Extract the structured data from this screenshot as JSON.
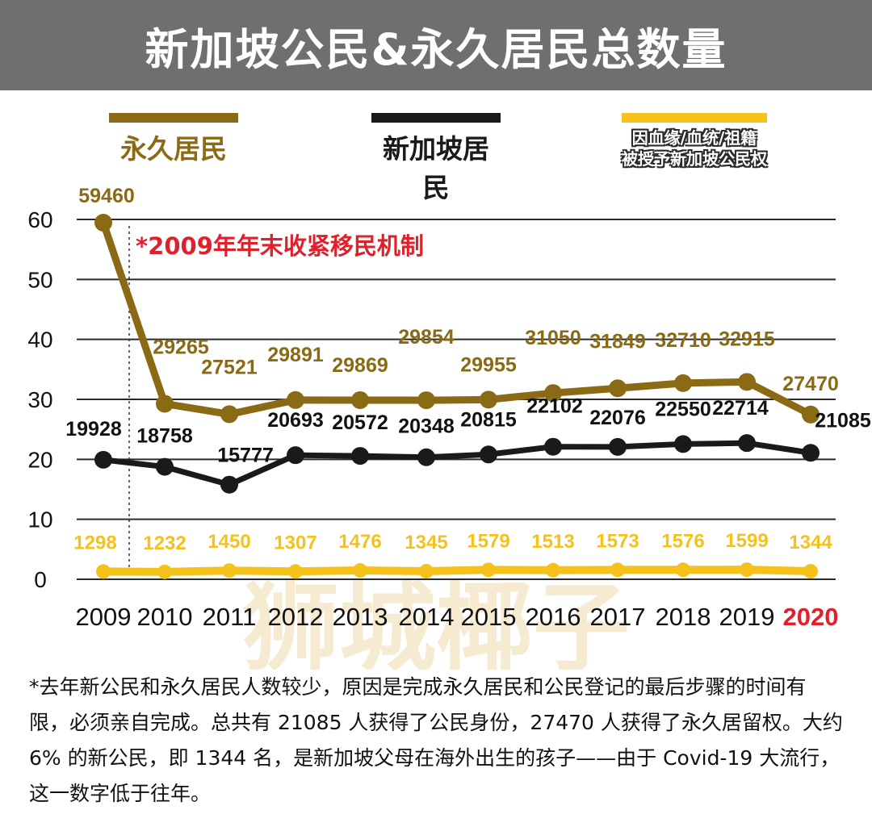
{
  "title": "新加坡公民&永久居民总数量",
  "legend": [
    {
      "label": "永久居民",
      "color": "#8a6a14"
    },
    {
      "label": "新加坡居民",
      "color": "#1a1a1a"
    },
    {
      "label_lines": [
        "因血缘/血统/祖籍",
        "被授予新加坡公民权"
      ],
      "color": "#f5c21b"
    }
  ],
  "annotation": "*2009年年末收紧移民机制",
  "footnote": "*去年新公民和永久居民人数较少，原因是完成永久居民和公民登记的最后步骤的时间有限，必须亲自完成。总共有 21085 人获得了公民身份，27470 人获得了永久居留权。大约 6% 的新公民，即 1344 名，是新加坡父母在海外出生的孩子——由于 Covid-19 大流行，这一数字低于往年。",
  "watermark": "狮城椰子",
  "colors": {
    "highlight_year": "#e0202a",
    "annotation": "#e0202a"
  },
  "chart_data": {
    "type": "line",
    "x": [
      "2009",
      "2010",
      "2011",
      "2012",
      "2013",
      "2014",
      "2015",
      "2016",
      "2017",
      "2018",
      "2019",
      "2020"
    ],
    "y_ticks": [
      "0",
      "10",
      "20",
      "30",
      "40",
      "50",
      "60"
    ],
    "ylim": [
      0,
      60
    ],
    "grid": true,
    "series": [
      {
        "name": "永久居民",
        "color": "#8a6a14",
        "values": [
          59460,
          29265,
          27521,
          29891,
          29869,
          29854,
          29955,
          31050,
          31849,
          32710,
          32915,
          27470
        ],
        "labels": [
          "59460",
          "29265",
          "27521",
          "29891",
          "29869",
          "29854",
          "29955",
          "31050",
          "31849",
          "32710",
          "32915",
          "27470"
        ]
      },
      {
        "name": "新加坡居民",
        "color": "#1a1a1a",
        "values": [
          19928,
          18758,
          15777,
          20693,
          20572,
          20348,
          20815,
          22102,
          22076,
          22550,
          22714,
          21085
        ],
        "labels": [
          "19928",
          "18758",
          "15777",
          "20693",
          "20572",
          "20348",
          "20815",
          "22102",
          "22076",
          "22550",
          "22714",
          "21085"
        ]
      },
      {
        "name": "因血缘/血统/祖籍被授予新加坡公民权",
        "color": "#f5c21b",
        "values": [
          1298,
          1232,
          1450,
          1307,
          1476,
          1345,
          1579,
          1513,
          1573,
          1576,
          1599,
          1344
        ],
        "labels": [
          "1298",
          "1232",
          "1450",
          "1307",
          "1476",
          "1345",
          "1579",
          "1513",
          "1573",
          "1576",
          "1599",
          "1344"
        ]
      }
    ]
  }
}
